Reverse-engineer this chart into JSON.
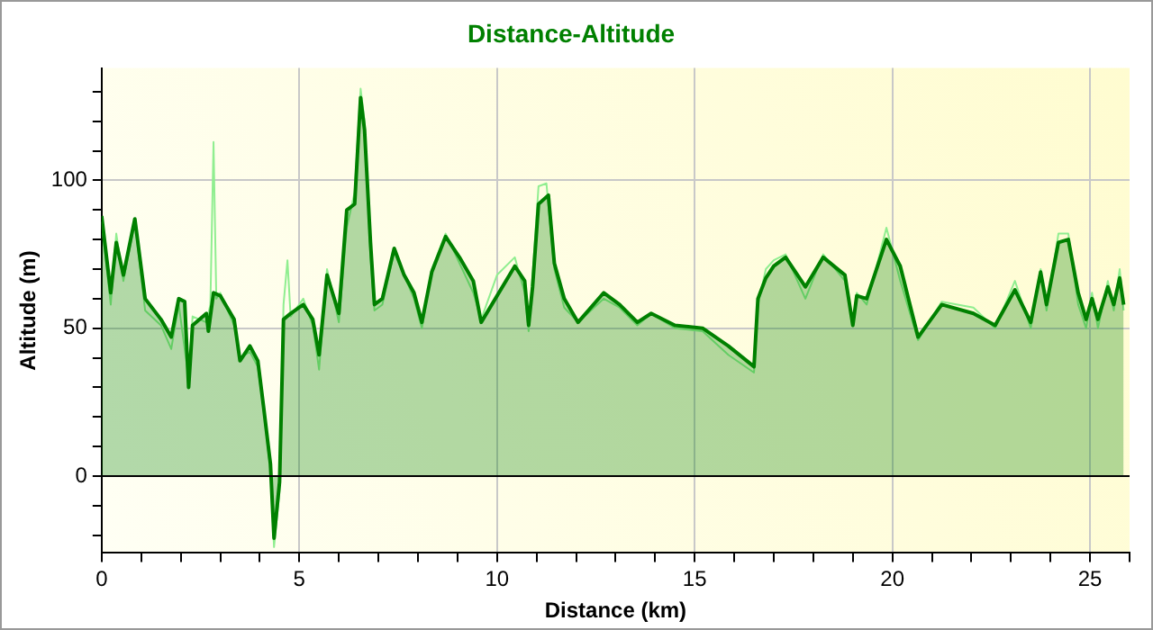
{
  "chart_data": {
    "type": "area",
    "title": "Distance-Altitude",
    "xlabel": "Distance (km)",
    "ylabel": "Altitude (m)",
    "xlim": [
      0,
      26
    ],
    "ylim": [
      -26,
      138
    ],
    "xticks": [
      0,
      {
        "value": 1,
        "label": null
      },
      {
        "value": 2,
        "label": null
      },
      {
        "value": 3,
        "label": null
      },
      {
        "value": 4,
        "label": null
      },
      5,
      {
        "value": 6,
        "label": null
      },
      {
        "value": 7,
        "label": null
      },
      {
        "value": 8,
        "label": null
      },
      {
        "value": 9,
        "label": null
      },
      10,
      {
        "value": 11,
        "label": null
      },
      {
        "value": 12,
        "label": null
      },
      {
        "value": 13,
        "label": null
      },
      {
        "value": 14,
        "label": null
      },
      15,
      {
        "value": 16,
        "label": null
      },
      {
        "value": 17,
        "label": null
      },
      {
        "value": 18,
        "label": null
      },
      {
        "value": 19,
        "label": null
      },
      20,
      {
        "value": 21,
        "label": null
      },
      {
        "value": 22,
        "label": null
      },
      {
        "value": 23,
        "label": null
      },
      {
        "value": 24,
        "label": null
      },
      25,
      {
        "value": 26,
        "label": null
      }
    ],
    "yticks": [
      {
        "value": -20,
        "label": null
      },
      {
        "value": -10,
        "label": null
      },
      0,
      {
        "value": 10,
        "label": null
      },
      {
        "value": 20,
        "label": null
      },
      {
        "value": 30,
        "label": null
      },
      {
        "value": 40,
        "label": null
      },
      50,
      {
        "value": 60,
        "label": null
      },
      {
        "value": 70,
        "label": null
      },
      {
        "value": 80,
        "label": null
      },
      {
        "value": 90,
        "label": null
      },
      100,
      {
        "value": 110,
        "label": null
      },
      {
        "value": 120,
        "label": null
      },
      {
        "value": 130,
        "label": null
      }
    ],
    "grid": true,
    "line_style": "solid",
    "marker": "none",
    "ref_lines": [
      {
        "axis": "y",
        "value": 0,
        "color": "#000000"
      }
    ],
    "series": [
      {
        "type": "line",
        "color": "#90ee90",
        "x": [
          0,
          0.23,
          0.37,
          0.55,
          0.84,
          1.1,
          1.5,
          1.76,
          1.95,
          2.2,
          2.3,
          2.65,
          2.75,
          2.83,
          2.9,
          3.0,
          3.35,
          3.5,
          3.75,
          3.95,
          4.1,
          4.27,
          4.36,
          4.5,
          4.6,
          4.7,
          4.78,
          5.1,
          5.34,
          5.5,
          5.7,
          6.0,
          6.2,
          6.4,
          6.55,
          6.65,
          6.8,
          6.9,
          7.1,
          7.4,
          7.9,
          8.1,
          8.35,
          8.7,
          9.05,
          9.4,
          9.6,
          10.0,
          10.45,
          10.7,
          10.8,
          10.9,
          11.05,
          11.25,
          11.45,
          11.7,
          12.05,
          12.7,
          13.1,
          13.55,
          13.9,
          14.5,
          15.2,
          15.85,
          16.5,
          16.6,
          16.8,
          17.0,
          17.3,
          17.8,
          18.25,
          18.8,
          19.0,
          19.1,
          19.35,
          19.85,
          20.2,
          20.65,
          21.25,
          22.05,
          22.6,
          23.1,
          23.5,
          23.75,
          23.9,
          24.2,
          24.45,
          24.7,
          24.9,
          25.05,
          25.2,
          25.45,
          25.6,
          25.75,
          25.85
        ],
        "values": [
          86,
          58,
          82,
          66,
          86,
          56,
          51,
          43,
          58,
          33,
          54,
          52,
          58,
          113,
          60,
          62,
          51,
          40,
          42,
          37,
          22,
          2,
          -24,
          -5,
          58,
          73,
          54,
          60,
          51,
          36,
          70,
          52,
          84,
          96,
          131,
          120,
          74,
          56,
          58,
          76,
          60,
          50,
          70,
          82,
          72,
          62,
          53,
          68,
          74,
          62,
          49,
          68,
          98,
          99,
          70,
          57,
          52,
          60,
          57,
          51,
          55,
          50,
          49,
          41,
          35,
          58,
          70,
          73,
          75,
          60,
          75,
          66,
          52,
          62,
          58,
          84,
          66,
          46,
          59,
          57,
          50,
          66,
          50,
          70,
          56,
          82,
          82,
          58,
          50,
          62,
          50,
          66,
          56,
          70,
          56
        ]
      },
      {
        "color": "#008000",
        "x": [
          0,
          0.23,
          0.37,
          0.55,
          0.84,
          1.1,
          1.5,
          1.76,
          1.95,
          2.1,
          2.2,
          2.3,
          2.65,
          2.7,
          2.83,
          3.0,
          3.35,
          3.5,
          3.75,
          3.95,
          4.1,
          4.27,
          4.36,
          4.5,
          4.6,
          4.78,
          5.1,
          5.34,
          5.5,
          5.7,
          6.0,
          6.2,
          6.4,
          6.55,
          6.65,
          6.8,
          6.9,
          7.1,
          7.4,
          7.65,
          7.9,
          8.1,
          8.35,
          8.7,
          9.05,
          9.4,
          9.6,
          10.45,
          10.7,
          10.8,
          10.9,
          11.05,
          11.3,
          11.45,
          11.7,
          12.05,
          12.7,
          13.1,
          13.55,
          13.9,
          14.5,
          15.2,
          15.85,
          16.5,
          16.6,
          16.8,
          17.0,
          17.3,
          17.8,
          18.25,
          18.8,
          19.0,
          19.1,
          19.35,
          19.85,
          20.2,
          20.65,
          21.25,
          22.05,
          22.6,
          23.1,
          23.5,
          23.75,
          23.9,
          24.2,
          24.45,
          24.7,
          24.9,
          25.05,
          25.2,
          25.45,
          25.6,
          25.75,
          25.85
        ],
        "values": [
          88,
          62,
          79,
          68,
          87,
          60,
          53,
          47,
          60,
          59,
          30,
          51,
          55,
          49,
          62,
          61,
          53,
          39,
          44,
          39,
          23,
          4,
          -21,
          -2,
          53,
          55,
          58,
          53,
          41,
          68,
          55,
          90,
          92,
          128,
          117,
          79,
          58,
          60,
          77,
          68,
          62,
          52,
          69,
          81,
          74,
          66,
          52,
          71,
          66,
          51,
          64,
          92,
          95,
          72,
          60,
          52,
          62,
          58,
          52,
          55,
          51,
          50,
          44,
          37,
          60,
          67,
          71,
          74,
          64,
          74,
          68,
          51,
          61,
          60,
          80,
          71,
          47,
          58,
          55,
          51,
          63,
          52,
          69,
          58,
          79,
          80,
          62,
          53,
          60,
          53,
          64,
          58,
          67,
          58
        ]
      }
    ]
  }
}
